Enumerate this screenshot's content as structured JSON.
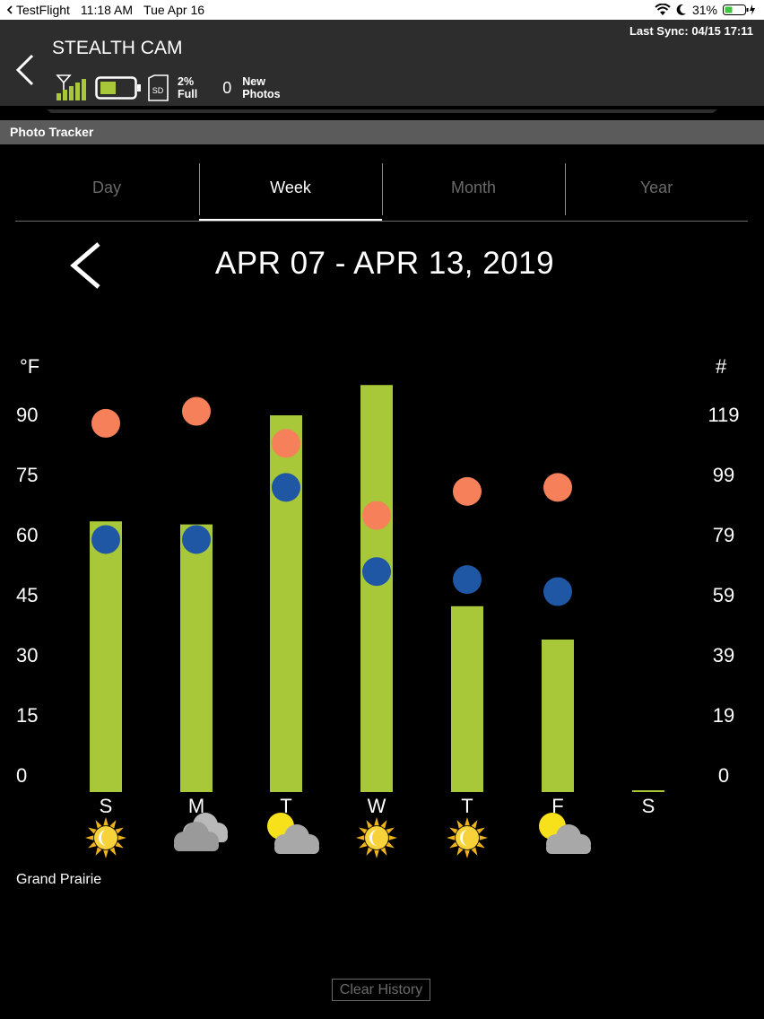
{
  "status_bar": {
    "app": "TestFlight",
    "time": "11:18 AM",
    "date": "Tue Apr 16",
    "battery_percent": "31%"
  },
  "header": {
    "camera_name": "STEALTH CAM",
    "last_sync": "Last Sync: 04/15 17:11",
    "sd_usage_value": "2%",
    "sd_usage_label": "Full",
    "new_photos_count": "0",
    "new_photos_label_1": "New",
    "new_photos_label_2": "Photos",
    "signal_bars": 5,
    "battery_level": 0.5,
    "accent_color": "#a8c83a"
  },
  "section_title": "Photo Tracker",
  "tabs": [
    {
      "label": "Day",
      "active": false
    },
    {
      "label": "Week",
      "active": true
    },
    {
      "label": "Month",
      "active": false
    },
    {
      "label": "Year",
      "active": false
    }
  ],
  "date_range": "APR 07 - APR 13, 2019",
  "chart_data": {
    "type": "bar",
    "left_axis_label": "°F",
    "right_axis_label": "#",
    "left_ticks": [
      "90",
      "75",
      "60",
      "45",
      "30",
      "15",
      "0"
    ],
    "right_ticks": [
      "119",
      "99",
      "79",
      "59",
      "39",
      "19",
      "0"
    ],
    "categories": [
      "S",
      "M",
      "T",
      "W",
      "T",
      "F",
      "S"
    ],
    "photo_counts": [
      84,
      83,
      119,
      129,
      56,
      45,
      0
    ],
    "high_temps_f": [
      88,
      91,
      83,
      65,
      71,
      72,
      null
    ],
    "low_temps_f": [
      59,
      59,
      72,
      51,
      49,
      46,
      null
    ],
    "weather_icons": [
      "sun-icon",
      "cloudy-icon",
      "partly-cloudy-icon",
      "sun-icon",
      "sun-icon",
      "partly-cloudy-icon",
      ""
    ],
    "bar_color": "#a8c83a",
    "high_color": "#f5805a",
    "low_color": "#1f57a5",
    "left_range": [
      0,
      90
    ],
    "right_range": [
      0,
      119
    ]
  },
  "location": "Grand Prairie",
  "clear_history_label": "Clear History"
}
